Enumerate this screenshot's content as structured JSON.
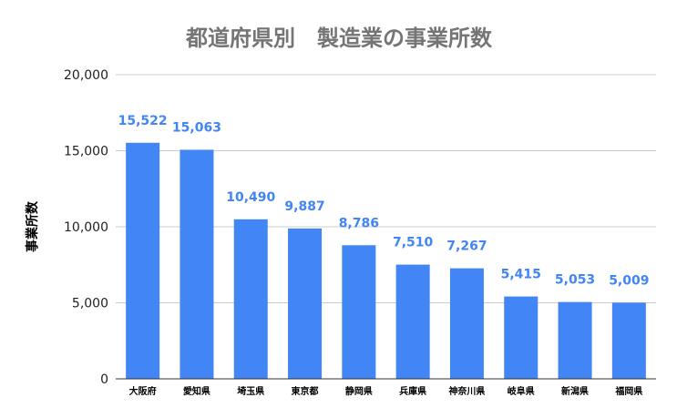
{
  "chart_data": {
    "type": "bar",
    "title": "都道府県別　製造業の事業所数",
    "xlabel": "",
    "ylabel": "事業所数",
    "ylim": [
      0,
      20000
    ],
    "yticks": [
      0,
      5000,
      10000,
      15000,
      20000
    ],
    "ytick_labels": [
      "0",
      "5,000",
      "10,000",
      "15,000",
      "20,000"
    ],
    "grid": true,
    "categories": [
      "大阪府",
      "愛知県",
      "埼玉県",
      "東京都",
      "静岡県",
      "兵庫県",
      "神奈川県",
      "岐阜県",
      "新潟県",
      "福岡県"
    ],
    "values": [
      15522,
      15063,
      10490,
      9887,
      8786,
      7510,
      7267,
      5415,
      5053,
      5009
    ],
    "data_labels": [
      "15,522",
      "15,063",
      "10,490",
      "9,887",
      "8,786",
      "7,510",
      "7,267",
      "5,415",
      "5,053",
      "5,009"
    ],
    "colors": {
      "bar": "#4285f4",
      "label": "#4285f4",
      "title": "#757575"
    }
  }
}
